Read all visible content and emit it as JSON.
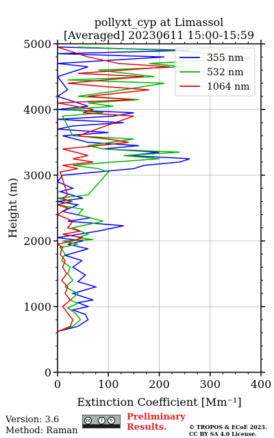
{
  "chart_data": {
    "type": "line",
    "title": "pollyxt_cyp at Limassol",
    "subtitle": "[Averaged] 20230611 15:00-15:59",
    "xlabel": "Extinction Coefficient [Mm⁻¹]",
    "ylabel": "Height (m)",
    "xlim": [
      0,
      400
    ],
    "ylim": [
      0,
      5000
    ],
    "x_ticks": [
      0,
      100,
      200,
      300,
      400
    ],
    "y_ticks": [
      0,
      1000,
      2000,
      3000,
      4000,
      5000
    ],
    "grid": true,
    "legend_position": "top-right",
    "series": [
      {
        "name": "355 nm",
        "color": "#0000ff",
        "x": [
          0,
          40,
          60,
          55,
          30,
          60,
          40,
          70,
          30,
          75,
          40,
          55,
          30,
          48,
          15,
          60,
          20,
          50,
          0,
          80,
          130,
          20,
          65,
          10,
          40,
          0,
          50,
          5,
          30,
          0,
          10,
          150,
          170,
          240,
          260,
          140,
          200,
          90,
          160,
          60,
          10,
          100,
          0,
          30,
          130,
          0,
          110,
          150,
          0,
          60,
          0,
          20,
          0,
          60,
          0,
          210,
          0,
          260,
          0
        ],
        "y": [
          620,
          700,
          800,
          880,
          950,
          1000,
          1060,
          1100,
          1200,
          1300,
          1380,
          1480,
          1600,
          1700,
          1780,
          1880,
          1950,
          2000,
          2050,
          2150,
          2230,
          2300,
          2350,
          2450,
          2550,
          2600,
          2650,
          2750,
          2800,
          2900,
          3000,
          3100,
          3150,
          3200,
          3250,
          3300,
          3350,
          3400,
          3450,
          3500,
          3600,
          3650,
          3700,
          3750,
          3800,
          3850,
          3900,
          3950,
          4000,
          4050,
          4200,
          4300,
          4500,
          4650,
          4700,
          4800,
          4850,
          4900,
          4950
        ]
      },
      {
        "name": "532 nm",
        "color": "#00b000",
        "x": [
          0,
          30,
          45,
          35,
          20,
          40,
          25,
          40,
          15,
          30,
          20,
          25,
          8,
          15,
          5,
          40,
          10,
          70,
          40,
          60,
          30,
          90,
          40,
          50,
          0,
          30,
          0,
          60,
          100,
          80,
          30,
          110,
          200,
          130,
          240,
          90,
          60,
          150,
          30,
          10,
          90,
          20,
          110,
          60,
          160,
          40,
          130,
          210,
          20,
          190,
          80,
          250,
          180,
          380,
          300,
          220,
          40
        ],
        "y": [
          620,
          700,
          800,
          900,
          980,
          1050,
          1100,
          1200,
          1300,
          1400,
          1500,
          1600,
          1700,
          1800,
          1900,
          1950,
          2000,
          2020,
          2050,
          2100,
          2200,
          2300,
          2400,
          2480,
          2550,
          2600,
          2650,
          2700,
          3050,
          3100,
          3150,
          3200,
          3250,
          3300,
          3350,
          3400,
          3450,
          3550,
          3600,
          3900,
          3950,
          4000,
          4050,
          4100,
          4150,
          4200,
          4300,
          4400,
          4450,
          4500,
          4600,
          4650,
          4700,
          4780,
          4850,
          4900,
          4950
        ]
      },
      {
        "name": "1064 nm",
        "color": "#e00000",
        "x": [
          0,
          25,
          30,
          20,
          10,
          25,
          15,
          20,
          8,
          18,
          10,
          15,
          5,
          10,
          0,
          30,
          50,
          10,
          45,
          20,
          30,
          0,
          20,
          0,
          25,
          10,
          20,
          5,
          40,
          10,
          70,
          30,
          60,
          10,
          80,
          140,
          100,
          40,
          150,
          50,
          70,
          0,
          150,
          60,
          180,
          90,
          20,
          170,
          40,
          220,
          120,
          60,
          0
        ],
        "y": [
          620,
          700,
          800,
          900,
          1000,
          1100,
          1200,
          1300,
          1400,
          1500,
          1600,
          1700,
          1800,
          1900,
          1950,
          2000,
          2050,
          2100,
          2150,
          2200,
          2300,
          2400,
          2500,
          2550,
          2600,
          2650,
          2700,
          3050,
          3100,
          3150,
          3200,
          3250,
          3300,
          3400,
          3450,
          3500,
          3550,
          3600,
          3900,
          3950,
          4000,
          4100,
          4150,
          4200,
          4300,
          4350,
          4400,
          4500,
          4550,
          4650,
          4700,
          4800,
          4950
        ]
      }
    ]
  },
  "footer": {
    "version": "Version: 3.6",
    "method": "Method: Raman",
    "prelim_line1": "Preliminary",
    "prelim_line2": "Results.",
    "prelim_color": "#e8202a",
    "copyright_line1": "© TROPOS & ECoE 2023.",
    "copyright_line2": "CC BY SA 4.0 License.",
    "license_icon": "cc-by-sa-icon"
  }
}
